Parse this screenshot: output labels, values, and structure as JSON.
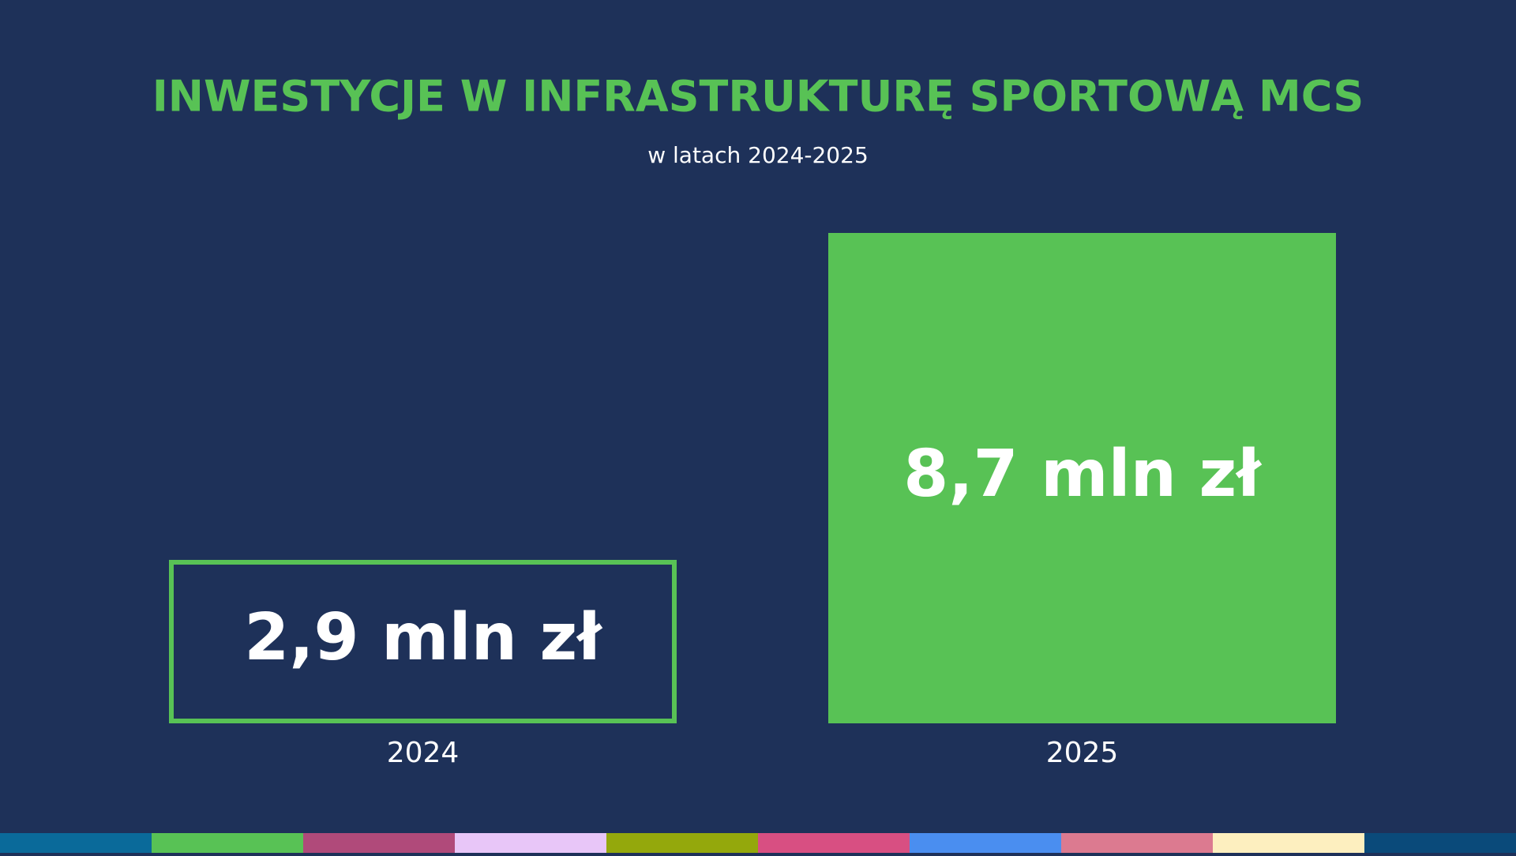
{
  "chart_data": {
    "type": "bar",
    "title": "INWESTYCJE W INFRASTRUKTURĘ SPORTOWĄ MCS",
    "subtitle": "w latach 2024-2025",
    "categories": [
      "2024",
      "2025"
    ],
    "values": [
      2.9,
      8.7
    ],
    "value_labels": [
      "2,9 mln zł",
      "8,7 mln zł"
    ],
    "color": "#58c255",
    "filled": [
      false,
      true
    ]
  }
}
